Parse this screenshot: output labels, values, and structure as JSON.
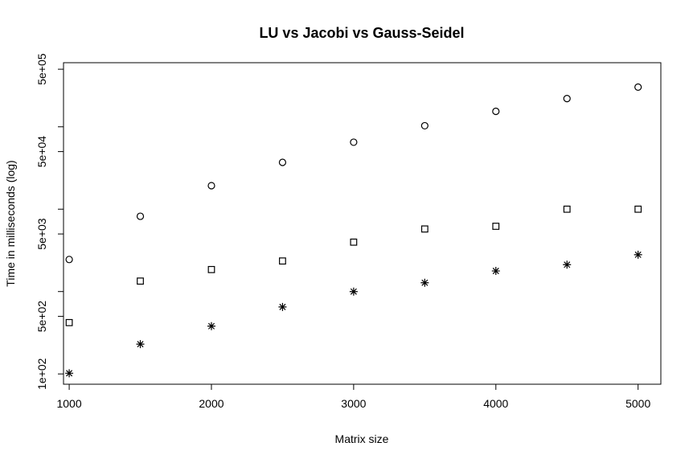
{
  "chart_data": {
    "type": "scatter",
    "title": "LU vs Jacobi vs Gauss-Seidel",
    "xlabel": "Matrix size",
    "ylabel": "Time in milliseconds (log)",
    "x_scale": "linear",
    "y_scale": "log",
    "xlim": [
      960,
      5160
    ],
    "ylim": [
      75,
      600000
    ],
    "x_ticks": [
      1000,
      2000,
      3000,
      4000,
      5000
    ],
    "x_tick_labels": [
      "1000",
      "2000",
      "3000",
      "4000",
      "5000"
    ],
    "y_ticks": [
      100,
      500,
      5000,
      50000,
      500000
    ],
    "y_tick_labels": [
      "1e+02",
      "5e+02",
      "5e+03",
      "5e+04",
      "5e+05"
    ],
    "y_minor_ticks": [
      1000,
      10000,
      100000
    ],
    "grid": false,
    "legend": "none",
    "x": [
      1000,
      1500,
      2000,
      2500,
      3000,
      3500,
      4000,
      4500,
      5000
    ],
    "series": [
      {
        "marker": "circle",
        "values": [
          2450,
          8200,
          19300,
          37000,
          65000,
          103000,
          154000,
          220000,
          303000
        ]
      },
      {
        "marker": "square",
        "values": [
          420,
          1340,
          1850,
          2350,
          3980,
          5750,
          6200,
          10000,
          10000
        ]
      },
      {
        "marker": "asterisk",
        "values": [
          102,
          230,
          380,
          650,
          1000,
          1280,
          1780,
          2120,
          2800
        ]
      }
    ]
  }
}
